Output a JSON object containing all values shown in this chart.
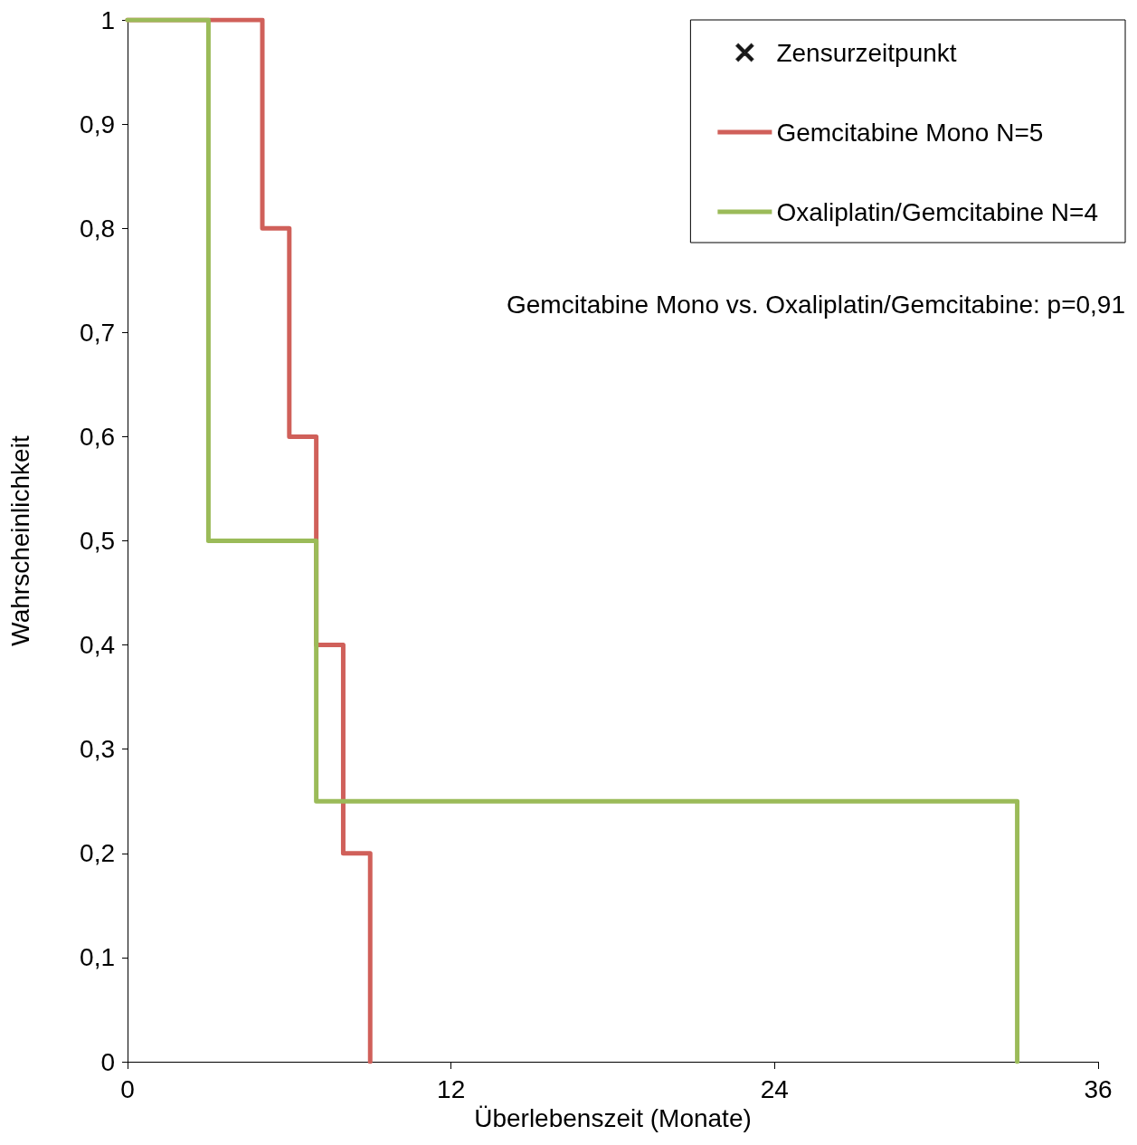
{
  "chart_data": {
    "type": "step",
    "xlabel": "Überlebenszeit (Monate)",
    "ylabel": "Wahrscheinlichkeit",
    "annotations": [
      "Gemcitabine Mono vs. Oxaliplatin/Gemcitabine: p=0,91"
    ],
    "series": [
      {
        "name": "Zensurzeitpunkt",
        "type": "scatter",
        "marker": "cross",
        "color": "#000000"
      },
      {
        "name": "Gemcitabine Mono N=5",
        "color": "#d0605a",
        "x": [
          0,
          5,
          6,
          7,
          8,
          9
        ],
        "values": [
          1,
          0.8,
          0.6,
          0.4,
          0.2,
          0
        ]
      },
      {
        "name": "Oxaliplatin/Gemcitabine N=4",
        "color": "#9bbb59",
        "x": [
          0,
          3,
          7,
          33
        ],
        "values": [
          1,
          0.5,
          0.25,
          0
        ]
      }
    ],
    "xlim": [
      0,
      36
    ],
    "xticks": [
      0,
      12,
      24,
      36
    ],
    "ylim": [
      0,
      1
    ],
    "yticks": [
      0,
      {
        "value": 0.1,
        "label": "0,1"
      },
      {
        "value": 0.2,
        "label": "0,2"
      },
      {
        "value": 0.3,
        "label": "0,3"
      },
      {
        "value": 0.4,
        "label": "0,4"
      },
      {
        "value": 0.5,
        "label": "0,5"
      },
      {
        "value": 0.6,
        "label": "0,6"
      },
      {
        "value": 0.7,
        "label": "0,7"
      },
      {
        "value": 0.8,
        "label": "0,8"
      },
      {
        "value": 0.9,
        "label": "0,9"
      },
      1
    ],
    "grid": false,
    "legend": "top right",
    "marker": "none",
    "line_style": "solid"
  }
}
